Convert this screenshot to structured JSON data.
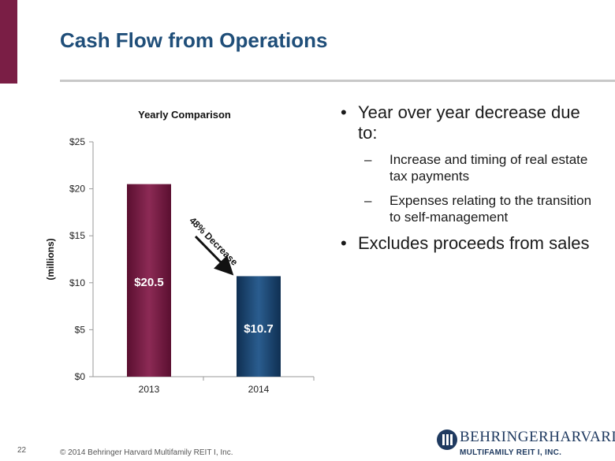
{
  "slide": {
    "title": "Cash Flow from Operations",
    "page_number": "22",
    "copyright": "© 2014 Behringer Harvard Multifamily REIT I, Inc.",
    "logo_main": "BEHRINGERHARVARD",
    "logo_sub": "MULTIFAMILY REIT I, INC."
  },
  "bullets": [
    {
      "text": "Year over year decrease due to:",
      "level": 1
    },
    {
      "text": "Increase and timing of real estate tax payments",
      "level": 2
    },
    {
      "text": "Expenses relating to the transition to self-management",
      "level": 2
    },
    {
      "text": "Excludes proceeds from sales",
      "level": 1
    }
  ],
  "chart_data": {
    "type": "bar",
    "title": "Yearly Comparison",
    "ylabel": "(millions)",
    "categories": [
      "2013",
      "2014"
    ],
    "values": [
      20.5,
      10.7
    ],
    "data_labels": [
      "$20.5",
      "$10.7"
    ],
    "ylim": [
      0,
      25
    ],
    "yticks": [
      0,
      5,
      10,
      15,
      20,
      25
    ],
    "ytick_labels": [
      "$0",
      "$5",
      "$10",
      "$15",
      "$20",
      "$25"
    ],
    "bar_colors": [
      "#7a1e45",
      "#1f4e79"
    ],
    "annotation": "48% Decrease",
    "grid": false
  }
}
